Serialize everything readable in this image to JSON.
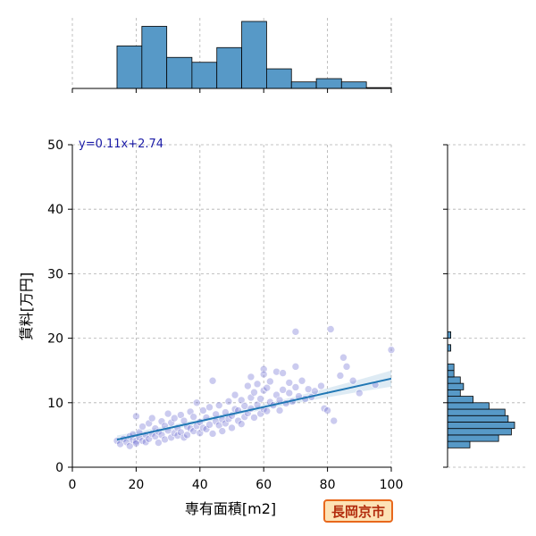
{
  "badge": {
    "text": "長岡京市",
    "bg": "#fde2b5",
    "border": "#e8681c",
    "color": "#b22b0c"
  },
  "chart_data": {
    "type": "scatter",
    "xlabel": "専有面積[m2]",
    "ylabel": "賃料[万円]",
    "xlim": [
      0,
      100
    ],
    "ylim": [
      0,
      50
    ],
    "xticks": [
      0,
      20,
      40,
      60,
      80,
      100
    ],
    "yticks": [
      0,
      10,
      20,
      30,
      40,
      50
    ],
    "grid": true,
    "annotation": "y=0.11x+2.74",
    "regression": {
      "slope": 0.11,
      "intercept": 2.74,
      "x_range": [
        14,
        100
      ]
    },
    "colors": {
      "points": "#6a6ad0",
      "regression": "#1f77b4",
      "bars": "#5799c7"
    },
    "points": [
      [
        14,
        4.1
      ],
      [
        15,
        3.6
      ],
      [
        16,
        4.4
      ],
      [
        17,
        3.9
      ],
      [
        18,
        4.8
      ],
      [
        18,
        3.3
      ],
      [
        19,
        4.2
      ],
      [
        19,
        5.1
      ],
      [
        20,
        4.0
      ],
      [
        20,
        3.7
      ],
      [
        20,
        7.9
      ],
      [
        21,
        4.6
      ],
      [
        21,
        5.4
      ],
      [
        22,
        4.1
      ],
      [
        22,
        6.3
      ],
      [
        23,
        3.9
      ],
      [
        23,
        5.0
      ],
      [
        24,
        4.4
      ],
      [
        24,
        6.8
      ],
      [
        25,
        5.2
      ],
      [
        25,
        7.6
      ],
      [
        26,
        4.8
      ],
      [
        26,
        6.0
      ],
      [
        27,
        5.5
      ],
      [
        27,
        3.8
      ],
      [
        28,
        7.1
      ],
      [
        28,
        5.0
      ],
      [
        29,
        6.4
      ],
      [
        29,
        4.3
      ],
      [
        30,
        5.7
      ],
      [
        30,
        8.3
      ],
      [
        31,
        4.6
      ],
      [
        31,
        6.9
      ],
      [
        32,
        5.3
      ],
      [
        32,
        7.6
      ],
      [
        33,
        4.9
      ],
      [
        33,
        6.1
      ],
      [
        34,
        8.1
      ],
      [
        34,
        5.4
      ],
      [
        35,
        4.6
      ],
      [
        35,
        7.2
      ],
      [
        36,
        6.3
      ],
      [
        36,
        5.0
      ],
      [
        37,
        8.6
      ],
      [
        37,
        6.0
      ],
      [
        38,
        5.6
      ],
      [
        38,
        7.8
      ],
      [
        39,
        10.0
      ],
      [
        39,
        6.4
      ],
      [
        40,
        5.3
      ],
      [
        40,
        7.0
      ],
      [
        41,
        8.8
      ],
      [
        41,
        6.1
      ],
      [
        42,
        5.9
      ],
      [
        42,
        7.7
      ],
      [
        43,
        9.3
      ],
      [
        43,
        6.6
      ],
      [
        44,
        5.2
      ],
      [
        44,
        13.4
      ],
      [
        45,
        7.1
      ],
      [
        45,
        8.2
      ],
      [
        46,
        6.5
      ],
      [
        46,
        9.6
      ],
      [
        47,
        7.4
      ],
      [
        47,
        5.6
      ],
      [
        48,
        8.5
      ],
      [
        48,
        6.8
      ],
      [
        49,
        10.2
      ],
      [
        49,
        7.5
      ],
      [
        50,
        8.0
      ],
      [
        50,
        6.1
      ],
      [
        51,
        9.0
      ],
      [
        51,
        11.2
      ],
      [
        52,
        7.2
      ],
      [
        52,
        8.8
      ],
      [
        53,
        10.4
      ],
      [
        53,
        6.7
      ],
      [
        54,
        9.5
      ],
      [
        54,
        7.8
      ],
      [
        55,
        12.6
      ],
      [
        55,
        8.4
      ],
      [
        56,
        10.8
      ],
      [
        56,
        9.1
      ],
      [
        56,
        14.0
      ],
      [
        57,
        7.7
      ],
      [
        57,
        11.6
      ],
      [
        58,
        9.7
      ],
      [
        58,
        12.9
      ],
      [
        59,
        8.3
      ],
      [
        59,
        10.6
      ],
      [
        60,
        15.2
      ],
      [
        60,
        14.4
      ],
      [
        60,
        9.0
      ],
      [
        60,
        11.9
      ],
      [
        61,
        12.3
      ],
      [
        61,
        8.7
      ],
      [
        62,
        10.1
      ],
      [
        62,
        13.3
      ],
      [
        63,
        9.6
      ],
      [
        64,
        11.2
      ],
      [
        64,
        14.8
      ],
      [
        65,
        10.4
      ],
      [
        65,
        8.8
      ],
      [
        66,
        12.0
      ],
      [
        66,
        14.6
      ],
      [
        67,
        9.9
      ],
      [
        68,
        11.5
      ],
      [
        68,
        13.1
      ],
      [
        69,
        10.2
      ],
      [
        70,
        12.4
      ],
      [
        70,
        15.6
      ],
      [
        70,
        21.0
      ],
      [
        71,
        11.0
      ],
      [
        72,
        13.4
      ],
      [
        73,
        10.6
      ],
      [
        74,
        12.1
      ],
      [
        75,
        10.9
      ],
      [
        76,
        11.8
      ],
      [
        78,
        12.6
      ],
      [
        79,
        9.1
      ],
      [
        80,
        8.8
      ],
      [
        81,
        21.4
      ],
      [
        82,
        7.2
      ],
      [
        84,
        14.2
      ],
      [
        85,
        17.0
      ],
      [
        86,
        15.6
      ],
      [
        88,
        13.4
      ],
      [
        90,
        11.5
      ],
      [
        95,
        12.8
      ],
      [
        100,
        18.2
      ]
    ],
    "x_histogram": {
      "bin_edges": [
        14,
        21.8,
        29.6,
        37.5,
        45.3,
        53.1,
        60.9,
        68.7,
        76.5,
        84.4,
        92.2,
        100
      ],
      "counts": [
        26,
        38,
        19,
        16,
        25,
        41,
        12,
        4,
        6,
        4,
        0.5
      ]
    },
    "y_histogram": {
      "bin_edges": [
        3,
        4,
        5,
        6,
        7,
        8,
        9,
        10,
        11,
        12,
        13,
        14,
        15,
        16,
        17,
        18,
        19,
        20,
        21
      ],
      "counts": [
        7,
        16,
        20,
        21,
        19,
        18,
        13,
        8,
        4,
        5,
        4,
        2,
        2,
        0,
        0,
        1,
        0,
        1
      ]
    }
  }
}
